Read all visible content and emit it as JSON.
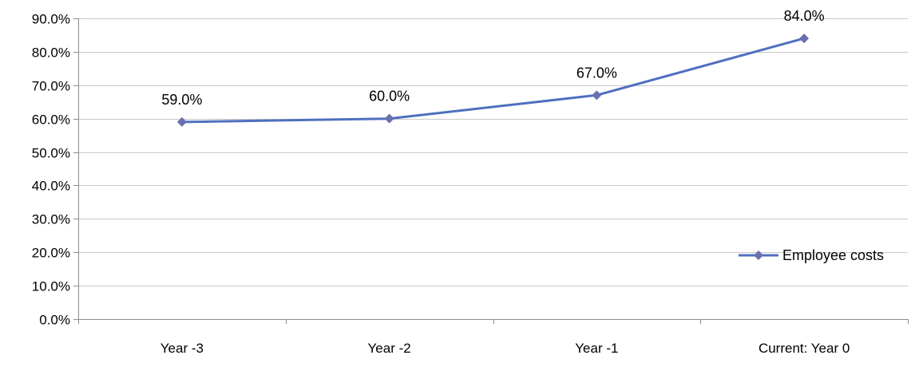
{
  "chart_data": {
    "type": "line",
    "categories": [
      "Year -3",
      "Year -2",
      "Year -1",
      "Current: Year 0"
    ],
    "series": [
      {
        "name": "Employee costs",
        "values": [
          59.0,
          60.0,
          67.0,
          84.0
        ],
        "data_labels": [
          "59.0%",
          "60.0%",
          "67.0%",
          "84.0%"
        ],
        "color": "#4F6FBF",
        "marker_color": "#6A6FAE"
      }
    ],
    "ylim": [
      0,
      90
    ],
    "yticks": [
      0,
      10,
      20,
      30,
      40,
      50,
      60,
      70,
      80,
      90
    ],
    "ytick_labels": [
      "0.0%",
      "10.0%",
      "20.0%",
      "30.0%",
      "40.0%",
      "50.0%",
      "60.0%",
      "70.0%",
      "80.0%",
      "90.0%"
    ],
    "title": "",
    "xlabel": "",
    "ylabel": "",
    "grid": true,
    "legend_position": "right",
    "gridline_color": "#C8C8C8",
    "axis_color": "#8C8C8C"
  }
}
